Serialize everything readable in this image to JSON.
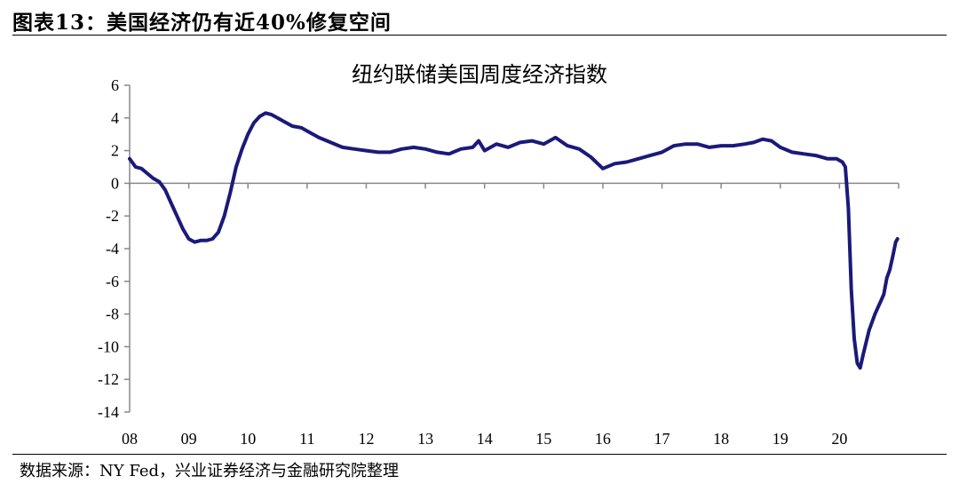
{
  "figure": {
    "header": "图表13：美国经济仍有近40%修复空间",
    "source": "数据来源：NY Fed，兴业证券经济与金融研究院整理"
  },
  "colors": {
    "series": "#1a1a7a",
    "axis": "#888888",
    "text": "#000000"
  },
  "chart_data": {
    "type": "line",
    "title": "纽约联储美国周度经济指数",
    "xlabel": "",
    "ylabel": "",
    "x_ticks": [
      "08",
      "09",
      "10",
      "11",
      "12",
      "13",
      "14",
      "15",
      "16",
      "17",
      "18",
      "19",
      "20"
    ],
    "y_ticks": [
      6,
      4,
      2,
      0,
      -2,
      -4,
      -6,
      -8,
      -10,
      -12,
      -14
    ],
    "xlim": [
      2008.0,
      2021.0
    ],
    "ylim": [
      -14,
      6
    ],
    "grid": false,
    "legend": "none",
    "series": [
      {
        "x": [
          2008.0,
          2008.1,
          2008.2,
          2008.3,
          2008.4,
          2008.5,
          2008.6,
          2008.7,
          2008.8,
          2008.9,
          2009.0,
          2009.1,
          2009.2,
          2009.3,
          2009.4,
          2009.5,
          2009.6,
          2009.7,
          2009.8,
          2009.9,
          2010.0,
          2010.1,
          2010.2,
          2010.3,
          2010.4,
          2010.5,
          2010.6,
          2010.75,
          2010.9,
          2011.0,
          2011.2,
          2011.4,
          2011.6,
          2011.8,
          2012.0,
          2012.2,
          2012.4,
          2012.6,
          2012.8,
          2013.0,
          2013.2,
          2013.4,
          2013.6,
          2013.8,
          2013.9,
          2014.0,
          2014.2,
          2014.4,
          2014.6,
          2014.8,
          2015.0,
          2015.2,
          2015.4,
          2015.6,
          2015.8,
          2016.0,
          2016.2,
          2016.4,
          2016.6,
          2016.8,
          2017.0,
          2017.2,
          2017.4,
          2017.6,
          2017.8,
          2018.0,
          2018.2,
          2018.4,
          2018.55,
          2018.7,
          2018.85,
          2019.0,
          2019.2,
          2019.4,
          2019.6,
          2019.8,
          2019.95,
          2020.05,
          2020.1,
          2020.15,
          2020.2,
          2020.25,
          2020.3,
          2020.35,
          2020.4,
          2020.5,
          2020.6,
          2020.7,
          2020.75,
          2020.8,
          2020.85,
          2020.9,
          2020.95,
          2020.98
        ],
        "values": [
          1.5,
          1.0,
          0.9,
          0.6,
          0.3,
          0.1,
          -0.4,
          -1.2,
          -2.0,
          -2.8,
          -3.4,
          -3.6,
          -3.5,
          -3.5,
          -3.4,
          -3.0,
          -2.0,
          -0.6,
          1.0,
          2.1,
          3.0,
          3.7,
          4.1,
          4.3,
          4.2,
          4.0,
          3.8,
          3.5,
          3.4,
          3.2,
          2.8,
          2.5,
          2.2,
          2.1,
          2.0,
          1.9,
          1.9,
          2.1,
          2.2,
          2.1,
          1.9,
          1.8,
          2.1,
          2.2,
          2.6,
          2.0,
          2.4,
          2.2,
          2.5,
          2.6,
          2.4,
          2.8,
          2.3,
          2.1,
          1.6,
          0.9,
          1.2,
          1.3,
          1.5,
          1.7,
          1.9,
          2.3,
          2.4,
          2.4,
          2.2,
          2.3,
          2.3,
          2.4,
          2.5,
          2.7,
          2.6,
          2.2,
          1.9,
          1.8,
          1.7,
          1.5,
          1.5,
          1.3,
          1.0,
          -1.5,
          -6.5,
          -9.5,
          -11.0,
          -11.3,
          -10.5,
          -9.0,
          -8.0,
          -7.2,
          -6.8,
          -5.8,
          -5.3,
          -4.5,
          -3.6,
          -3.4
        ]
      }
    ]
  }
}
